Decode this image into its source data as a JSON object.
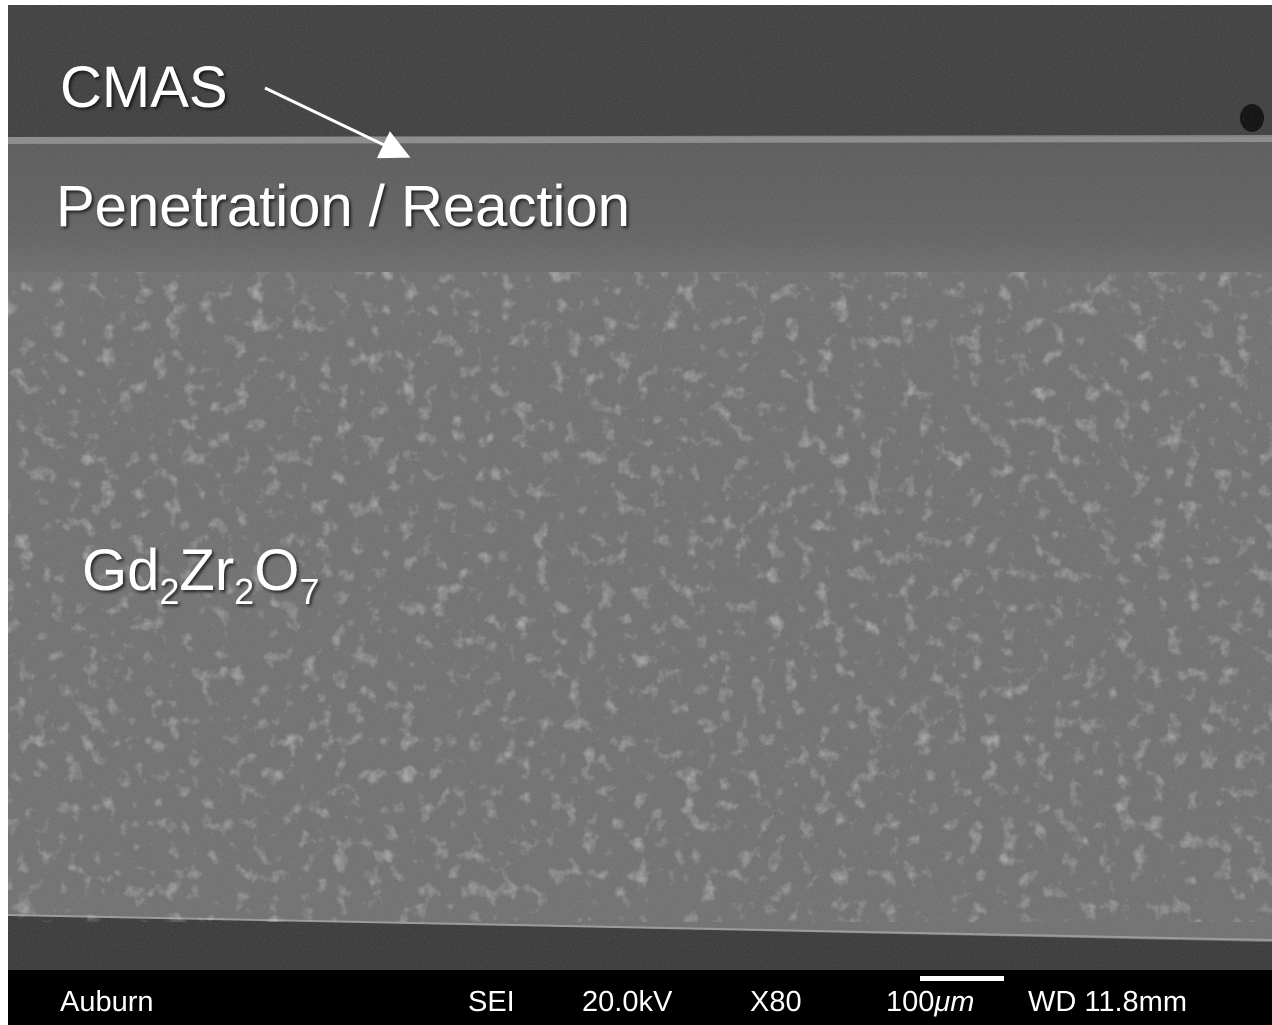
{
  "annotations": {
    "cmas": "CMAS",
    "reaction": "Penetration / Reaction",
    "formula": [
      "Gd",
      "2",
      "Zr",
      "2",
      "O",
      "7"
    ]
  },
  "footer": {
    "site": "Auburn",
    "detector": "SEI",
    "voltage": "20.0kV",
    "magnification": "X80",
    "scale_number": "100",
    "scale_unit": "μm",
    "working_distance": "WD 11.8mm"
  }
}
